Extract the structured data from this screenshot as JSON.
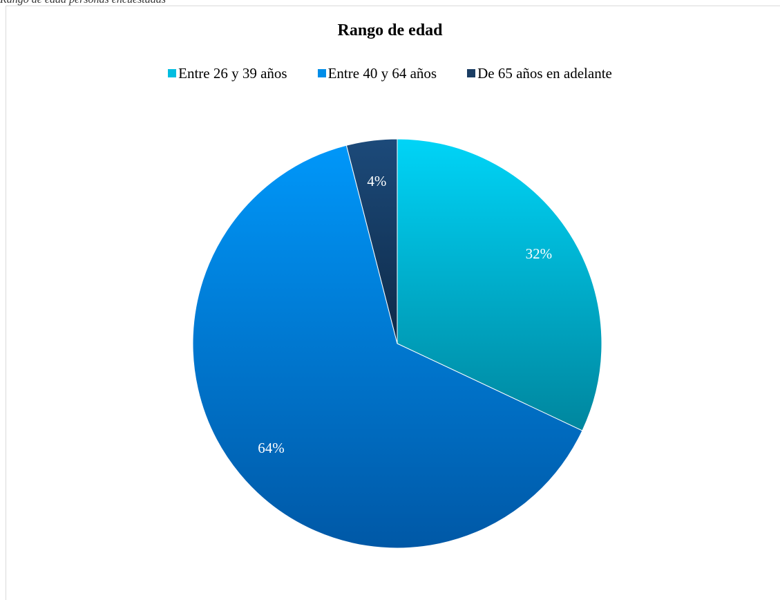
{
  "caption": "Rango de edad personas encuestadas",
  "chart_data": {
    "type": "pie",
    "title": "Rango de edad",
    "legend_position": "top",
    "start_angle_deg": 0,
    "direction": "clockwise",
    "slices": [
      {
        "label": "Entre 26 y 39 años",
        "value": 32,
        "value_label": "32%",
        "color_light": "#00d4f7",
        "color_dark": "#00869e",
        "legend_color": "#00bde0"
      },
      {
        "label": "Entre 40 y 64 años",
        "value": 64,
        "value_label": "64%",
        "color_light": "#0097f9",
        "color_dark": "#0058a6",
        "legend_color": "#008de8"
      },
      {
        "label": "De 65 años en adelante",
        "value": 4,
        "value_label": "4%",
        "color_light": "#1c4a7a",
        "color_dark": "#0e2a48",
        "legend_color": "#1a3d63"
      }
    ]
  }
}
